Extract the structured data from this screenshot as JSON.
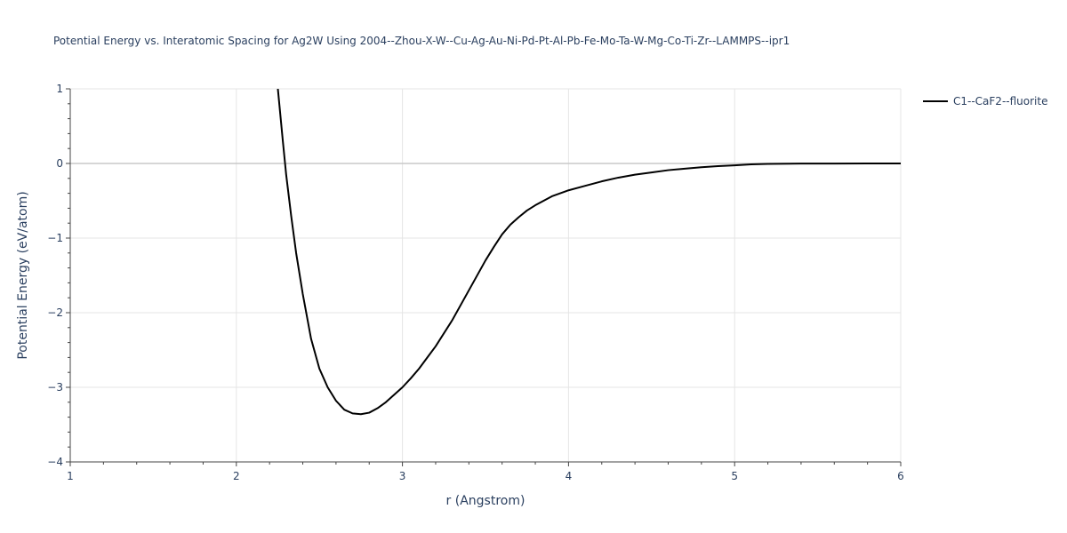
{
  "chart_data": {
    "type": "line",
    "title": "Potential Energy vs. Interatomic Spacing for Ag2W Using 2004--Zhou-X-W--Cu-Ag-Au-Ni-Pd-Pt-Al-Pb-Fe-Mo-Ta-W-Mg-Co-Ti-Zr--LAMMPS--ipr1",
    "xlabel": "r (Angstrom)",
    "ylabel": "Potential Energy (eV/atom)",
    "xlim": [
      1,
      6
    ],
    "ylim": [
      -4,
      1
    ],
    "x_ticks": [
      1,
      2,
      3,
      4,
      5,
      6
    ],
    "x_tick_labels": [
      "1",
      "2",
      "3",
      "4",
      "5",
      "6"
    ],
    "y_ticks": [
      -4,
      -3,
      -2,
      -1,
      0,
      1
    ],
    "y_tick_labels": [
      "−4",
      "−3",
      "−2",
      "−1",
      "0",
      "1"
    ],
    "grid": true,
    "legend_position": "top-right",
    "series": [
      {
        "name": "C1--CaF2--fluorite",
        "color": "#000000",
        "x": [
          2.25,
          2.28,
          2.3,
          2.33,
          2.36,
          2.4,
          2.45,
          2.5,
          2.55,
          2.6,
          2.65,
          2.7,
          2.75,
          2.8,
          2.85,
          2.9,
          2.95,
          3.0,
          3.05,
          3.1,
          3.15,
          3.2,
          3.3,
          3.4,
          3.5,
          3.55,
          3.6,
          3.65,
          3.7,
          3.75,
          3.8,
          3.85,
          3.9,
          4.0,
          4.1,
          4.2,
          4.3,
          4.4,
          4.5,
          4.6,
          4.7,
          4.8,
          4.9,
          5.0,
          5.1,
          5.2,
          5.4,
          5.6,
          5.8,
          6.0
        ],
        "y": [
          1.0,
          0.3,
          -0.15,
          -0.7,
          -1.2,
          -1.75,
          -2.35,
          -2.75,
          -3.0,
          -3.18,
          -3.3,
          -3.35,
          -3.36,
          -3.34,
          -3.28,
          -3.2,
          -3.1,
          -3.0,
          -2.88,
          -2.75,
          -2.6,
          -2.45,
          -2.1,
          -1.7,
          -1.3,
          -1.12,
          -0.95,
          -0.82,
          -0.72,
          -0.63,
          -0.56,
          -0.5,
          -0.44,
          -0.36,
          -0.3,
          -0.24,
          -0.19,
          -0.15,
          -0.12,
          -0.09,
          -0.07,
          -0.05,
          -0.035,
          -0.025,
          -0.012,
          -0.006,
          -0.002,
          -0.001,
          0.0,
          0.0
        ]
      }
    ]
  }
}
